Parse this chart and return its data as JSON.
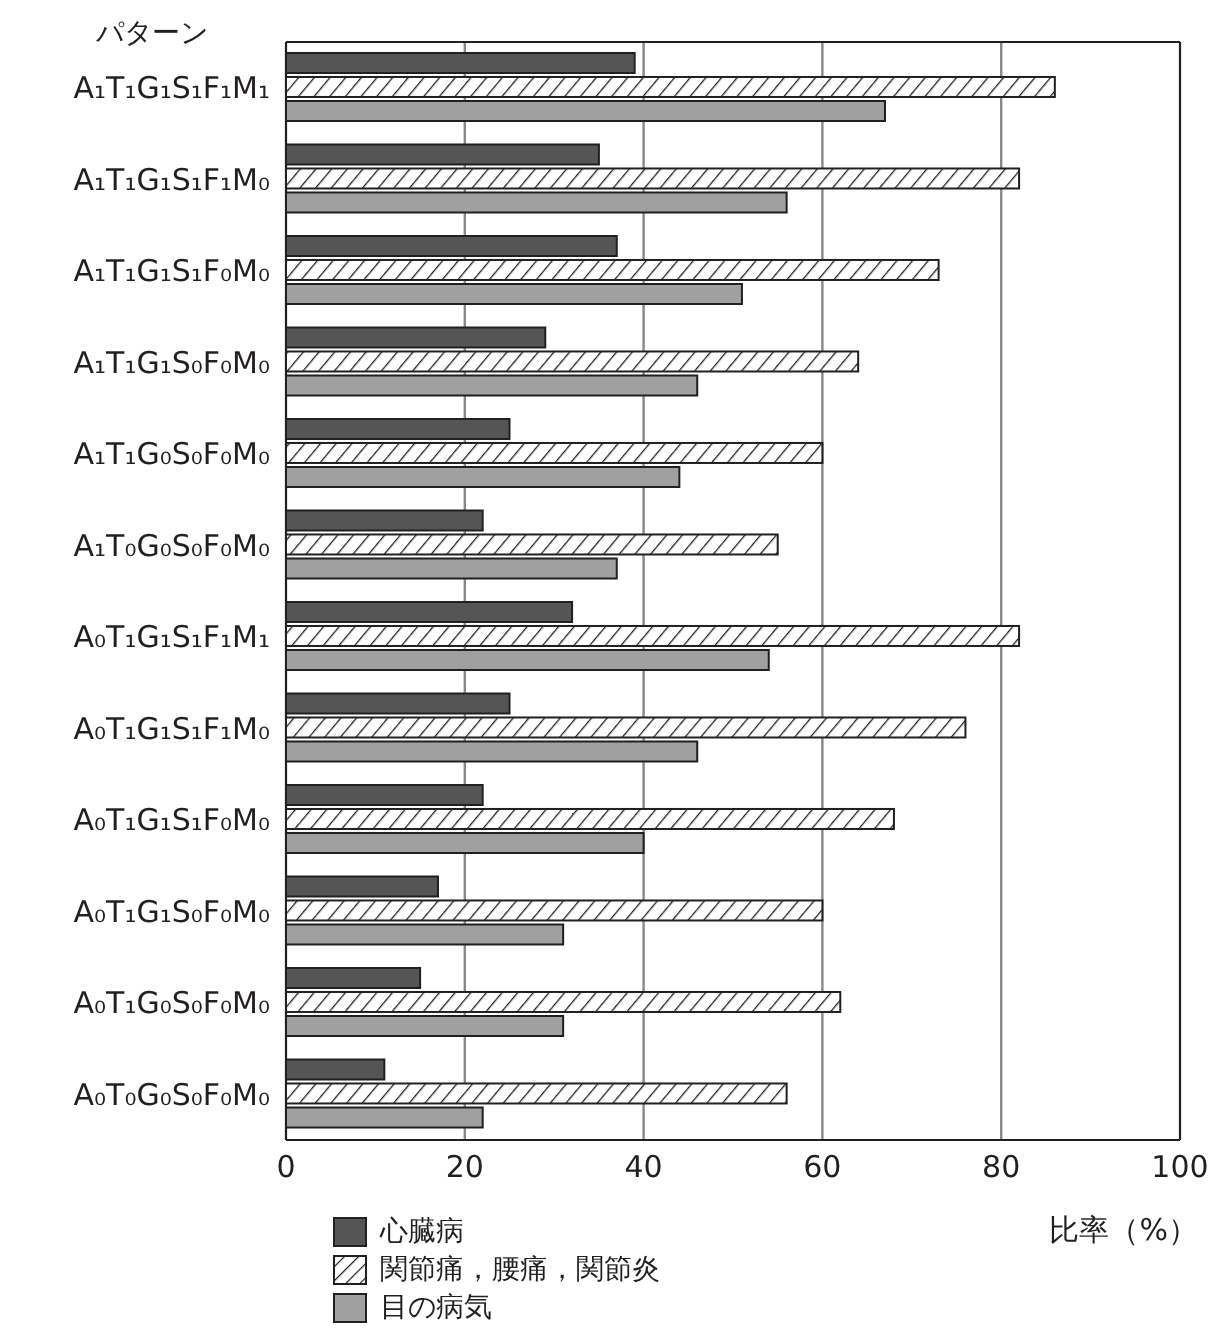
{
  "chart_data": {
    "type": "bar",
    "orientation": "horizontal",
    "ylabel": "パターン",
    "xlabel": "比率（%）",
    "categories": [
      "A₁T₁G₁S₁F₁M₁",
      "A₁T₁G₁S₁F₁M₀",
      "A₁T₁G₁S₁F₀M₀",
      "A₁T₁G₁S₀F₀M₀",
      "A₁T₁G₀S₀F₀M₀",
      "A₁T₀G₀S₀F₀M₀",
      "A₀T₁G₁S₁F₁M₁",
      "A₀T₁G₁S₁F₁M₀",
      "A₀T₁G₁S₁F₀M₀",
      "A₀T₁G₁S₀F₀M₀",
      "A₀T₁G₀S₀F₀M₀",
      "A₀T₀G₀S₀F₀M₀"
    ],
    "series": [
      {
        "name": "心臓病",
        "color": "#555555",
        "values": [
          39,
          35,
          37,
          29,
          25,
          22,
          32,
          25,
          22,
          17,
          15,
          11
        ]
      },
      {
        "name": "関節痛，腰痛，関節炎",
        "color": "#ffffff",
        "values": [
          86,
          82,
          73,
          64,
          60,
          55,
          82,
          76,
          68,
          60,
          62,
          56
        ]
      },
      {
        "name": "目の病気",
        "color": "#a0a0a0",
        "values": [
          67,
          56,
          51,
          46,
          44,
          37,
          54,
          46,
          40,
          31,
          31,
          22
        ]
      }
    ],
    "xlim": [
      0,
      100
    ],
    "xticks": [
      0,
      20,
      40,
      60,
      80,
      100
    ],
    "grid": "x",
    "legend": "bottom left"
  }
}
